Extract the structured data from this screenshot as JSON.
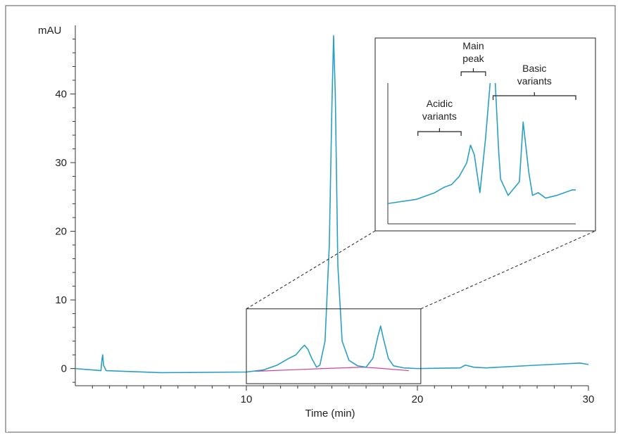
{
  "colors": {
    "trace": "#2a9fc4",
    "baseline": "#d1409b",
    "frame": "#555555",
    "axis": "#333333"
  },
  "chart_data": {
    "type": "line",
    "xlabel": "Time (min)",
    "ylabel": "mAU",
    "xlim": [
      0,
      30
    ],
    "ylim": [
      -2.5,
      50
    ],
    "x_ticks": [
      10,
      20,
      30
    ],
    "y_ticks": [
      0,
      10,
      20,
      30,
      40
    ],
    "grid": false,
    "series": [
      {
        "x": [
          0,
          1.5,
          1.55,
          1.6,
          1.65,
          1.8,
          5,
          10,
          11,
          11.8,
          12.5,
          12.9,
          13.2,
          13.4,
          13.6,
          13.8,
          14.1,
          14.3,
          14.6,
          14.85,
          15.0,
          15.1,
          15.2,
          15.35,
          15.6,
          16.0,
          16.5,
          17.0,
          17.4,
          17.7,
          17.85,
          18.0,
          18.3,
          18.6,
          19.2,
          20,
          22.5,
          22.8,
          23.3,
          24,
          27,
          29.5,
          30
        ],
        "y": [
          0.0,
          -0.3,
          1.2,
          2.0,
          0.5,
          -0.3,
          -0.6,
          -0.5,
          -0.2,
          0.5,
          1.5,
          2.0,
          2.9,
          3.4,
          2.8,
          1.6,
          0.2,
          0.5,
          4.0,
          18.0,
          38.0,
          48.5,
          40.0,
          15.0,
          4.0,
          1.2,
          0.4,
          0.2,
          1.5,
          4.8,
          6.2,
          4.5,
          1.5,
          0.4,
          0.1,
          0.0,
          0.1,
          0.5,
          0.2,
          0.1,
          0.5,
          0.8,
          0.6
        ]
      }
    ],
    "baseline_series": {
      "x": [
        10.5,
        12.5,
        14.5,
        16.8,
        17.5,
        19.5
      ],
      "y": [
        -0.4,
        -0.2,
        0.0,
        0.2,
        0.1,
        -0.3
      ]
    },
    "inset": {
      "zoom_xlim": [
        10,
        20.2
      ],
      "zoom_ylim": [
        -2.2,
        8.7
      ],
      "series": {
        "x": [
          0,
          0.15,
          0.25,
          0.3,
          0.34,
          0.38,
          0.42,
          0.44,
          0.46,
          0.49,
          0.52,
          0.55,
          0.56,
          0.57,
          0.59,
          0.6,
          0.64,
          0.7,
          0.72,
          0.75,
          0.77,
          0.8,
          0.84,
          0.9,
          0.98,
          1.0
        ],
        "y": [
          0.02,
          0.05,
          0.1,
          0.14,
          0.16,
          0.22,
          0.32,
          0.45,
          0.38,
          0.1,
          0.5,
          1.0,
          1.0,
          0.95,
          0.4,
          0.2,
          0.08,
          0.18,
          0.62,
          0.25,
          0.08,
          0.1,
          0.06,
          0.08,
          0.12,
          0.12
        ]
      },
      "annotations": [
        {
          "lines": [
            "Acidic",
            "variants"
          ],
          "range": [
            0.16,
            0.39
          ]
        },
        {
          "lines": [
            "Main",
            "peak"
          ],
          "range": [
            0.39,
            0.52
          ]
        },
        {
          "lines": [
            "Basic",
            "variants"
          ],
          "range": [
            0.56,
            1.0
          ]
        }
      ]
    }
  }
}
